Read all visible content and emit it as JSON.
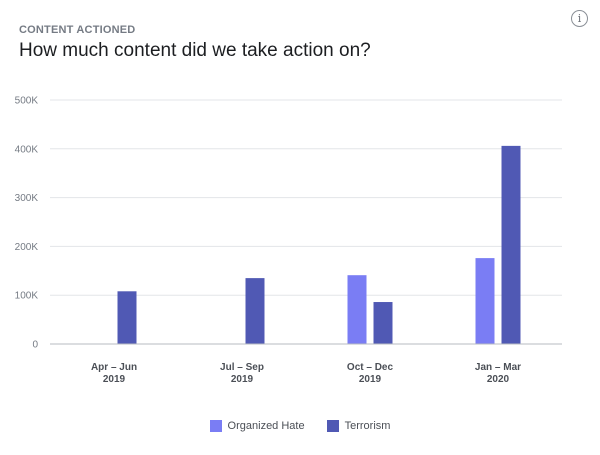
{
  "header": {
    "eyebrow": "CONTENT ACTIONED",
    "title": "How much content did we take action on?",
    "info_icon": "i"
  },
  "chart_data": {
    "type": "bar",
    "title": "How much content did we take action on?",
    "xlabel": "",
    "ylabel": "",
    "ylim": [
      0,
      500000
    ],
    "yticks": [
      0,
      100000,
      200000,
      300000,
      400000,
      500000
    ],
    "ytick_labels": [
      "0",
      "100K",
      "200K",
      "300K",
      "400K",
      "500K"
    ],
    "grid": true,
    "legend_position": "bottom",
    "categories": [
      {
        "line1": "Apr – Jun",
        "line2": "2019"
      },
      {
        "line1": "Jul – Sep",
        "line2": "2019"
      },
      {
        "line1": "Oct – Dec",
        "line2": "2019"
      },
      {
        "line1": "Jan – Mar",
        "line2": "2020"
      }
    ],
    "series": [
      {
        "name": "Organized Hate",
        "color": "#7a7df4",
        "values": [
          null,
          null,
          141000,
          176000
        ]
      },
      {
        "name": "Terrorism",
        "color": "#5059b4",
        "values": [
          108000,
          135000,
          86000,
          406000
        ]
      }
    ]
  },
  "colors": {
    "gridline": "#e3e5e8",
    "axis": "#b7bbc1"
  }
}
